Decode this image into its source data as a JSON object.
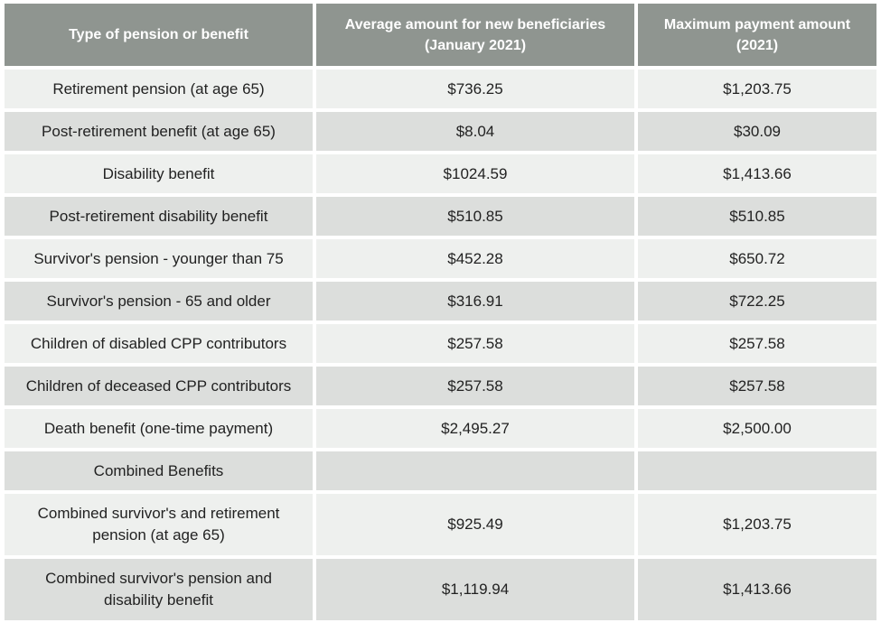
{
  "table": {
    "header": [
      "Type of pension or benefit",
      "Average amount for new beneficiaries (January 2021)",
      "Maximum payment amount (2021)"
    ],
    "rows": [
      [
        "Retirement pension (at age 65)",
        "$736.25",
        "$1,203.75"
      ],
      [
        "Post-retirement benefit (at age 65)",
        "$8.04",
        "$30.09"
      ],
      [
        "Disability benefit",
        "$1024.59",
        "$1,413.66"
      ],
      [
        "Post-retirement disability benefit",
        "$510.85",
        "$510.85"
      ],
      [
        "Survivor's pension - younger than 75",
        "$452.28",
        "$650.72"
      ],
      [
        "Survivor's pension - 65 and older",
        "$316.91",
        "$722.25"
      ],
      [
        "Children of disabled CPP contributors",
        "$257.58",
        "$257.58"
      ],
      [
        "Children of deceased CPP contributors",
        "$257.58",
        "$257.58"
      ],
      [
        "Death benefit (one-time payment)",
        "$2,495.27",
        "$2,500.00"
      ],
      [
        "Combined Benefits"
      ],
      [
        "Combined survivor's and retirement pension (at age 65)",
        "$925.49",
        "$1,203.75"
      ],
      [
        "Combined survivor's pension and disability benefit",
        "$1,119.94",
        "$1,413.66"
      ]
    ]
  }
}
